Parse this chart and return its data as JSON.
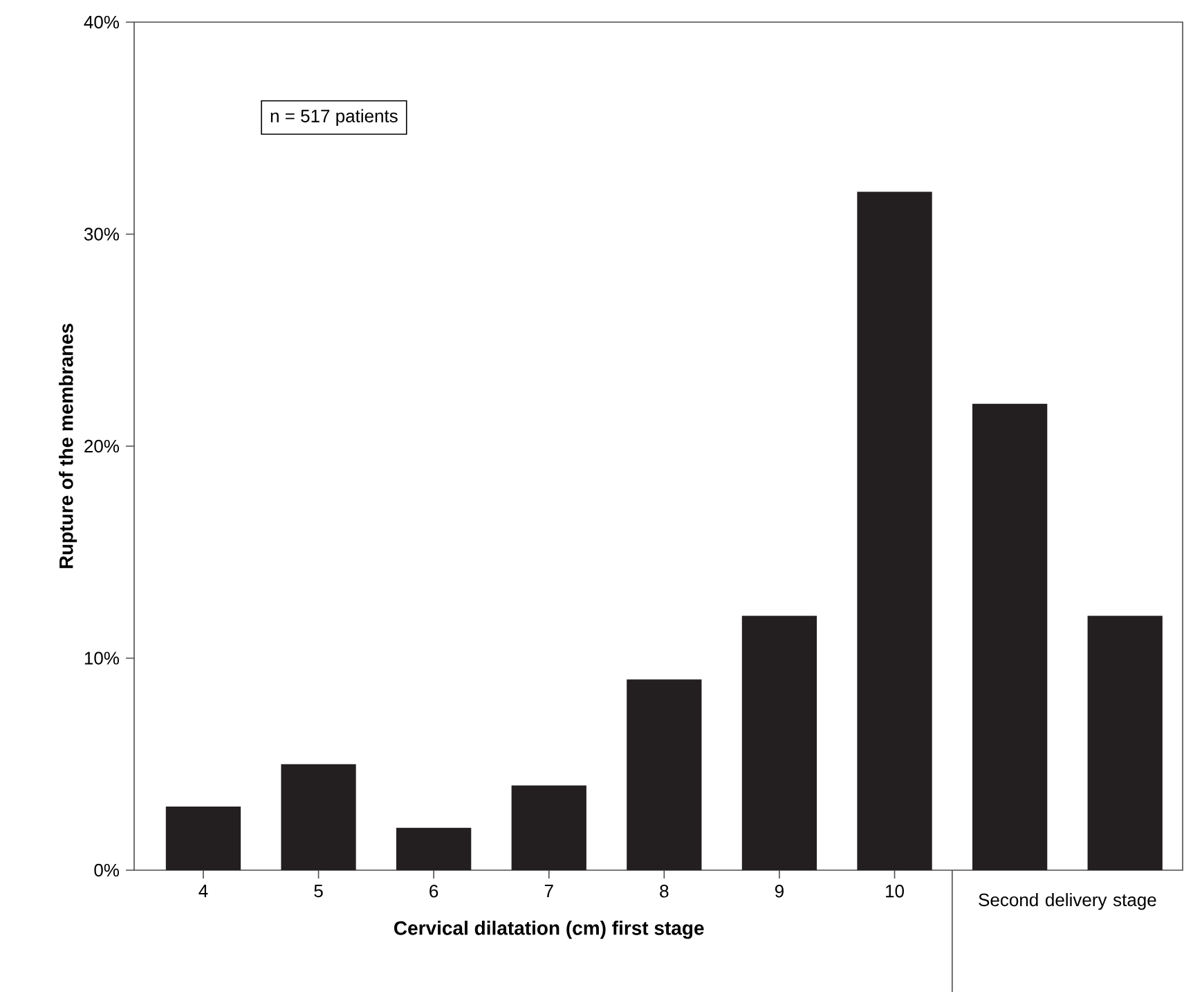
{
  "chart_data": {
    "type": "bar",
    "xlabel": "Cervical dilatation (cm) first stage",
    "ylabel": "Rupture of the membranes",
    "categories": [
      "4",
      "5",
      "6",
      "7",
      "8",
      "9",
      "10",
      null,
      null
    ],
    "values": [
      3,
      5,
      2,
      4,
      9,
      12,
      32,
      22,
      12
    ],
    "color": "#231f20",
    "ylim": [
      0,
      40
    ],
    "yticks": [
      {
        "value": 0,
        "label": "0%"
      },
      {
        "value": 10,
        "label": "10%"
      },
      {
        "value": 20,
        "label": "20%"
      },
      {
        "value": 30,
        "label": "30%"
      },
      {
        "value": 40,
        "label": "40%"
      }
    ],
    "annotations": [
      "n = 517 patients",
      "Second delivery stage"
    ]
  }
}
